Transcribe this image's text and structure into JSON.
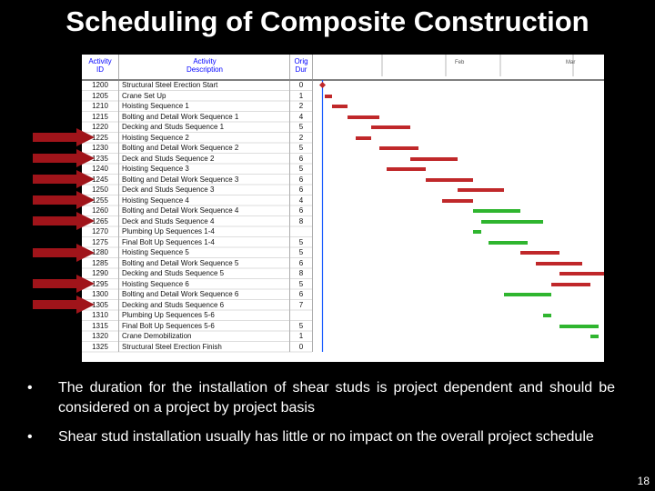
{
  "slide": {
    "title": "Scheduling of Composite Construction",
    "page_number": "18",
    "bullets": [
      "The duration for the installation of shear studs is project dependent and should be considered on a project by project basis",
      "Shear stud installation usually has little or no impact on the overall project schedule"
    ]
  },
  "gantt": {
    "headers": {
      "id_line1": "Activity",
      "id_line2": "ID",
      "desc_line1": "Activity",
      "desc_line2": "Description",
      "dur_line1": "Orig",
      "dur_line2": "Dur"
    },
    "timeline_labels": [
      "Feb",
      "Mar"
    ],
    "colors": {
      "steel": "#c0282a",
      "studs": "#2fb52f",
      "milestone": "#c0282a",
      "arrow": "#a0141a",
      "header_text": "#0000ff"
    },
    "rows": [
      {
        "id": "1200",
        "desc": "Structural Steel Erection Start",
        "dur": "0",
        "type": "milestone-start",
        "start": 0,
        "len": 0
      },
      {
        "id": "1205",
        "desc": "Crane Set Up",
        "dur": "1",
        "type": "steel",
        "start": 1,
        "len": 1
      },
      {
        "id": "1210",
        "desc": "Hoisting Sequence 1",
        "dur": "2",
        "type": "steel",
        "start": 2,
        "len": 2
      },
      {
        "id": "1215",
        "desc": "Bolting and Detail Work Sequence 1",
        "dur": "4",
        "type": "steel",
        "start": 4,
        "len": 4
      },
      {
        "id": "1220",
        "desc": "Decking and Studs Sequence 1",
        "dur": "5",
        "type": "steel",
        "start": 7,
        "len": 5
      },
      {
        "id": "1225",
        "desc": "Hoisting Sequence 2",
        "dur": "2",
        "type": "steel",
        "start": 5,
        "len": 2
      },
      {
        "id": "1230",
        "desc": "Bolting and Detail Work Sequence 2",
        "dur": "5",
        "type": "steel",
        "start": 8,
        "len": 5
      },
      {
        "id": "1235",
        "desc": "Deck and Studs Sequence 2",
        "dur": "6",
        "type": "steel",
        "start": 12,
        "len": 6
      },
      {
        "id": "1240",
        "desc": "Hoisting Sequence 3",
        "dur": "5",
        "type": "steel",
        "start": 9,
        "len": 5
      },
      {
        "id": "1245",
        "desc": "Bolting and Detail Work Sequence 3",
        "dur": "6",
        "type": "steel",
        "start": 14,
        "len": 6
      },
      {
        "id": "1250",
        "desc": "Deck and Studs Sequence 3",
        "dur": "6",
        "type": "steel",
        "start": 18,
        "len": 6
      },
      {
        "id": "1255",
        "desc": "Hoisting Sequence 4",
        "dur": "4",
        "type": "steel",
        "start": 16,
        "len": 4
      },
      {
        "id": "1260",
        "desc": "Bolting and Detail Work Sequence 4",
        "dur": "6",
        "type": "studs",
        "start": 20,
        "len": 6
      },
      {
        "id": "1265",
        "desc": "Deck and Studs Sequence 4",
        "dur": "8",
        "type": "studs",
        "start": 21,
        "len": 8
      },
      {
        "id": "1270",
        "desc": "Plumbing Up Sequences 1-4",
        "dur": "",
        "type": "studs",
        "start": 20,
        "len": 1
      },
      {
        "id": "1275",
        "desc": "Final Bolt Up Sequences 1-4",
        "dur": "5",
        "type": "studs",
        "start": 22,
        "len": 5
      },
      {
        "id": "1280",
        "desc": "Hoisting Sequence 5",
        "dur": "5",
        "type": "steel",
        "start": 26,
        "len": 5
      },
      {
        "id": "1285",
        "desc": "Bolting and Detail Work Sequence 5",
        "dur": "6",
        "type": "steel",
        "start": 28,
        "len": 6
      },
      {
        "id": "1290",
        "desc": "Decking and Studs Sequence 5",
        "dur": "8",
        "type": "steel",
        "start": 31,
        "len": 8
      },
      {
        "id": "1295",
        "desc": "Hoisting Sequence 6",
        "dur": "5",
        "type": "steel",
        "start": 30,
        "len": 5
      },
      {
        "id": "1300",
        "desc": "Bolting and Detail Work Sequence 6",
        "dur": "6",
        "type": "studs",
        "start": 24,
        "len": 6
      },
      {
        "id": "1305",
        "desc": "Decking and Studs Sequence 6",
        "dur": "7",
        "type": "steel",
        "start": 39,
        "len": 7
      },
      {
        "id": "1310",
        "desc": "Plumbing Up Sequences 5-6",
        "dur": "",
        "type": "studs",
        "start": 29,
        "len": 1
      },
      {
        "id": "1315",
        "desc": "Final Bolt Up Sequences 5-6",
        "dur": "5",
        "type": "studs",
        "start": 31,
        "len": 5
      },
      {
        "id": "1320",
        "desc": "Crane Demobilization",
        "dur": "1",
        "type": "studs",
        "start": 35,
        "len": 1
      },
      {
        "id": "1325",
        "desc": "Structural Steel Erection Finish",
        "dur": "0",
        "type": "milestone-end",
        "start": 46,
        "len": 0
      }
    ],
    "arrow_rows": [
      5,
      7,
      9,
      11,
      13,
      16,
      19,
      21
    ]
  }
}
